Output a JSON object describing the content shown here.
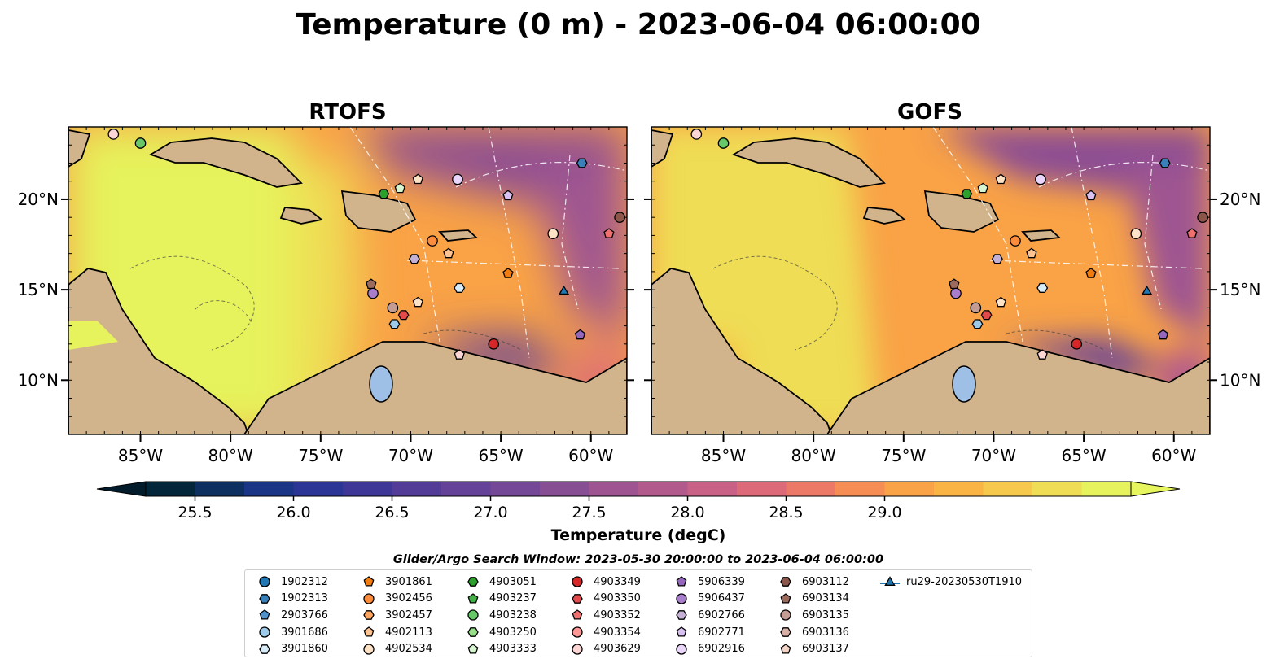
{
  "figure": {
    "title": "Temperature (0 m) - 2023-06-04 06:00:00",
    "window_label": "Glider/Argo Search Window: 2023-05-30 20:00:00 to 2023-06-04 06:00:00"
  },
  "chart_data": {
    "type": "heatmap",
    "panels": [
      {
        "title": "RTOFS",
        "model": "RTOFS"
      },
      {
        "title": "GOFS",
        "model": "GOFS"
      }
    ],
    "map_extent": {
      "lon_range": [
        -89,
        -58
      ],
      "lat_range": [
        7,
        24
      ]
    },
    "x_ticks": [
      {
        "value": -85,
        "label": "85°W"
      },
      {
        "value": -80,
        "label": "80°W"
      },
      {
        "value": -75,
        "label": "75°W"
      },
      {
        "value": -70,
        "label": "70°W"
      },
      {
        "value": -65,
        "label": "65°W"
      },
      {
        "value": -60,
        "label": "60°W"
      }
    ],
    "y_ticks": [
      {
        "value": 20,
        "label": "20°N"
      },
      {
        "value": 15,
        "label": "15°N"
      },
      {
        "value": 10,
        "label": "10°N"
      }
    ],
    "colorbar": {
      "label": "Temperature (degC)",
      "range": [
        25.25,
        29.375
      ],
      "step": 0.25,
      "extend": "both",
      "ticks": [
        "25.5",
        "26.0",
        "26.5",
        "27.0",
        "27.5",
        "28.0",
        "28.5",
        "29.0"
      ],
      "colors": [
        "#03263a",
        "#0e3060",
        "#1a3585",
        "#2b3595",
        "#3e3797",
        "#523c98",
        "#634297",
        "#744896",
        "#884e94",
        "#9e5491",
        "#b35a8c",
        "#c96186",
        "#dc6a79",
        "#ec7868",
        "#f68d54",
        "#f9a246",
        "#fab444",
        "#f6c84c",
        "#efdd55",
        "#e6f35c"
      ],
      "under_color": "#021c2c",
      "over_color": "#e8f65e"
    },
    "legend": {
      "platforms": [
        {
          "id": "1902312",
          "marker": "circle",
          "color": "#1f77b4"
        },
        {
          "id": "1902313",
          "marker": "hexagon",
          "color": "#3a80b8"
        },
        {
          "id": "2903766",
          "marker": "pentagon",
          "color": "#4f92cc"
        },
        {
          "id": "3901686",
          "marker": "circle",
          "color": "#9ecae9"
        },
        {
          "id": "3901860",
          "marker": "hexagon",
          "color": "#d7ecf9"
        },
        {
          "id": "3901861",
          "marker": "pentagon",
          "color": "#f07c12"
        },
        {
          "id": "3902456",
          "marker": "circle",
          "color": "#fd8d3c"
        },
        {
          "id": "3902457",
          "marker": "hexagon",
          "color": "#fda55e"
        },
        {
          "id": "4902113",
          "marker": "pentagon",
          "color": "#fdc391"
        },
        {
          "id": "4902534",
          "marker": "circle",
          "color": "#fde2c6"
        },
        {
          "id": "4903051",
          "marker": "hexagon",
          "color": "#2ca02c"
        },
        {
          "id": "4903237",
          "marker": "pentagon",
          "color": "#45b045"
        },
        {
          "id": "4903238",
          "marker": "circle",
          "color": "#66c866"
        },
        {
          "id": "4903250",
          "marker": "hexagon",
          "color": "#98df8a"
        },
        {
          "id": "4903333",
          "marker": "pentagon",
          "color": "#d6f5d0"
        },
        {
          "id": "4903349",
          "marker": "circle",
          "color": "#d62728"
        },
        {
          "id": "4903350",
          "marker": "hexagon",
          "color": "#e34a4b"
        },
        {
          "id": "4903352",
          "marker": "pentagon",
          "color": "#f06f6f"
        },
        {
          "id": "4903354",
          "marker": "circle",
          "color": "#ff9896"
        },
        {
          "id": "4903629",
          "marker": "circle",
          "color": "#fcd5d5"
        },
        {
          "id": "5906339",
          "marker": "pentagon",
          "color": "#9467bd"
        },
        {
          "id": "5906437",
          "marker": "circle",
          "color": "#a77dcc"
        },
        {
          "id": "6902766",
          "marker": "hexagon",
          "color": "#c5b0d5"
        },
        {
          "id": "6902771",
          "marker": "pentagon",
          "color": "#d9c2f2"
        },
        {
          "id": "6902916",
          "marker": "circle",
          "color": "#ead6fb"
        },
        {
          "id": "6903112",
          "marker": "hexagon",
          "color": "#8c564b"
        },
        {
          "id": "6903134",
          "marker": "pentagon",
          "color": "#9c6b5e"
        },
        {
          "id": "6903135",
          "marker": "circle",
          "color": "#c49c94"
        },
        {
          "id": "6903136",
          "marker": "hexagon",
          "color": "#dbb0a6"
        },
        {
          "id": "6903137",
          "marker": "pentagon",
          "color": "#f5d4c8"
        },
        {
          "id": "ru29-20230530T1910",
          "marker": "triangle-line",
          "color": "#1f77b4"
        }
      ]
    },
    "observations": [
      {
        "lon": -86.5,
        "lat": 23.6,
        "marker": "circle",
        "color": "#fcd5d5"
      },
      {
        "lon": -85.0,
        "lat": 23.1,
        "marker": "circle",
        "color": "#66c866"
      },
      {
        "lon": -71.5,
        "lat": 20.3,
        "marker": "hexagon",
        "color": "#2ca02c"
      },
      {
        "lon": -70.6,
        "lat": 20.6,
        "marker": "pentagon",
        "color": "#d6f5d0"
      },
      {
        "lon": -69.6,
        "lat": 21.1,
        "marker": "pentagon",
        "color": "#fde2c6"
      },
      {
        "lon": -67.4,
        "lat": 21.1,
        "marker": "circle",
        "color": "#ead6fb"
      },
      {
        "lon": -64.6,
        "lat": 20.2,
        "marker": "pentagon",
        "color": "#d9c2f2"
      },
      {
        "lon": -60.5,
        "lat": 22.0,
        "marker": "hexagon",
        "color": "#3a80b8"
      },
      {
        "lon": -58.4,
        "lat": 19.0,
        "marker": "circle",
        "color": "#8c564b"
      },
      {
        "lon": -59.0,
        "lat": 18.1,
        "marker": "pentagon",
        "color": "#f06f6f"
      },
      {
        "lon": -62.1,
        "lat": 18.1,
        "marker": "circle",
        "color": "#fde2c6"
      },
      {
        "lon": -68.8,
        "lat": 17.7,
        "marker": "circle",
        "color": "#fd8d3c"
      },
      {
        "lon": -67.9,
        "lat": 17.0,
        "marker": "pentagon",
        "color": "#fdc391"
      },
      {
        "lon": -69.8,
        "lat": 16.7,
        "marker": "hexagon",
        "color": "#c5b0d5"
      },
      {
        "lon": -64.6,
        "lat": 15.9,
        "marker": "pentagon",
        "color": "#f07c12"
      },
      {
        "lon": -67.3,
        "lat": 15.1,
        "marker": "hexagon",
        "color": "#d7ecf9"
      },
      {
        "lon": -61.5,
        "lat": 14.9,
        "marker": "triangle",
        "color": "#1f77b4"
      },
      {
        "lon": -72.2,
        "lat": 15.3,
        "marker": "pentagon",
        "color": "#9c6b5e"
      },
      {
        "lon": -72.1,
        "lat": 14.8,
        "marker": "circle",
        "color": "#a77dcc"
      },
      {
        "lon": -69.6,
        "lat": 14.3,
        "marker": "pentagon",
        "color": "#fde2c6"
      },
      {
        "lon": -71.0,
        "lat": 14.0,
        "marker": "circle",
        "color": "#c49c94"
      },
      {
        "lon": -70.4,
        "lat": 13.6,
        "marker": "hexagon",
        "color": "#e34a4b"
      },
      {
        "lon": -70.9,
        "lat": 13.1,
        "marker": "hexagon",
        "color": "#9ecae9"
      },
      {
        "lon": -60.6,
        "lat": 12.5,
        "marker": "pentagon",
        "color": "#9467bd"
      },
      {
        "lon": -65.4,
        "lat": 12.0,
        "marker": "circle",
        "color": "#d62728"
      },
      {
        "lon": -67.3,
        "lat": 11.4,
        "marker": "pentagon",
        "color": "#fcd5d5"
      }
    ]
  }
}
